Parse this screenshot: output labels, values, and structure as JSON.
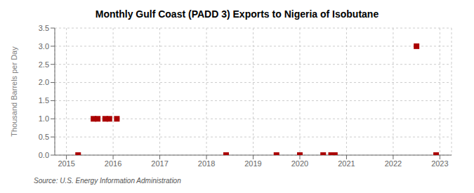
{
  "chart_data": {
    "type": "scatter",
    "title": "Monthly Gulf Coast (PADD 3) Exports to Nigeria of Isobutane",
    "ylabel": "Thousand Barrels per Day",
    "annotations": [
      "Source: U.S. Energy Information Administration"
    ],
    "x": [
      2015.25,
      2015.58,
      2015.67,
      2015.83,
      2015.92,
      2016.08,
      2018.42,
      2019.5,
      2020.0,
      2020.5,
      2020.67,
      2020.75,
      2022.5,
      2022.92
    ],
    "values": [
      0.0,
      1.0,
      1.0,
      1.0,
      1.0,
      1.0,
      0.0,
      0.0,
      0.0,
      0.0,
      0.0,
      0.0,
      3.0,
      0.0
    ],
    "color": "#aa0000",
    "marker": "square",
    "grid": true,
    "xlim": [
      2014.75,
      2023.25
    ],
    "ylim": [
      0.0,
      3.5
    ],
    "xticks": [
      2015,
      2016,
      2017,
      2018,
      2019,
      2020,
      2021,
      2022,
      2023
    ],
    "yticks": [
      {
        "value": 0.0,
        "label": "0.0"
      },
      0.5,
      {
        "value": 1.0,
        "label": "1.0"
      },
      1.5,
      {
        "value": 2.0,
        "label": "2.0"
      },
      2.5,
      {
        "value": 3.0,
        "label": "3.0"
      },
      3.5
    ]
  }
}
